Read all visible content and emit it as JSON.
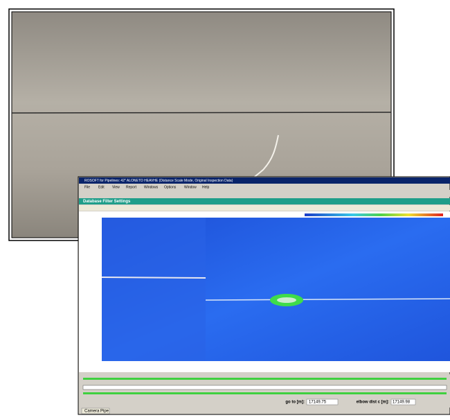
{
  "window": {
    "title": "ROSOFT for Pipelines: 42\" ALONETO HEAVHE  (Distance Scale Mode, Original Inspection Data)",
    "menu": [
      "File",
      "Edit",
      "View",
      "Report",
      "Windows",
      "Options",
      "Window",
      "Help"
    ]
  },
  "panel": {
    "title": "Database Filter Settings"
  },
  "footer": {
    "goto_label": "go to [m]:",
    "goto_value": "17149.75",
    "elbow_label": "elbow dist c [m]:",
    "elbow_value": "17149.98",
    "tab": "Camera Pipe"
  }
}
